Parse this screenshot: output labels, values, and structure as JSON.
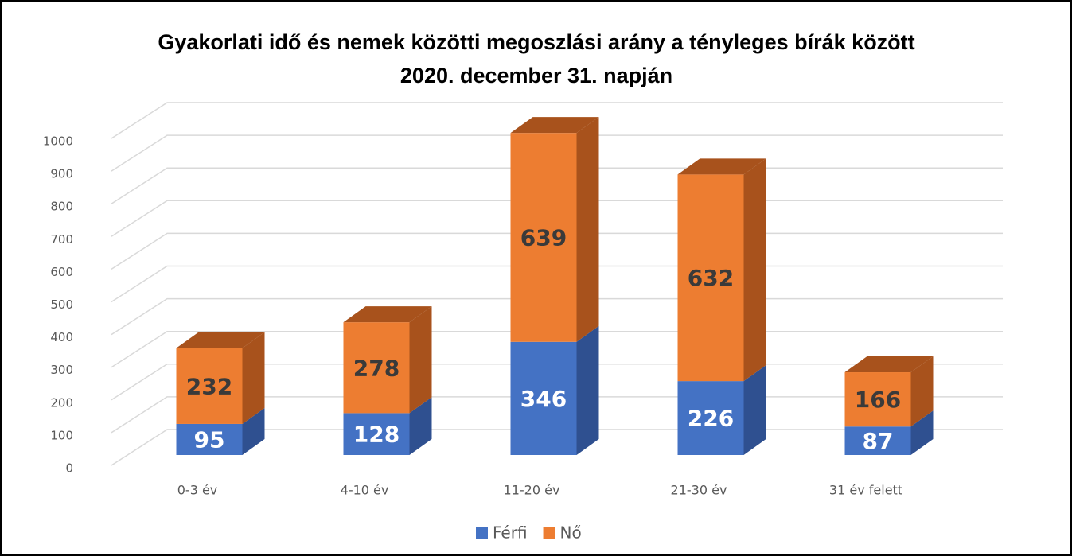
{
  "chart_data": {
    "type": "bar3d_stacked",
    "title": "Gyakorlati idő és nemek közötti megoszlási arány a tényleges bírák között",
    "subtitle": "2020. december 31. napján",
    "categories": [
      "0-3 év",
      "4-10 év",
      "11-20 év",
      "21-30 év",
      "31 év felett"
    ],
    "series": [
      {
        "name": "Férfi",
        "color": "#4472c4",
        "side": "#2f5090",
        "values": [
          95,
          128,
          346,
          226,
          87
        ]
      },
      {
        "name": "Nő",
        "color": "#ed7d31",
        "side": "#a8521c",
        "values": [
          232,
          278,
          639,
          632,
          166
        ]
      }
    ],
    "ylim": [
      0,
      1000
    ],
    "yticks": [
      0,
      100,
      200,
      300,
      400,
      500,
      600,
      700,
      800,
      900,
      1000
    ],
    "grid": true,
    "legend": "bottom"
  }
}
